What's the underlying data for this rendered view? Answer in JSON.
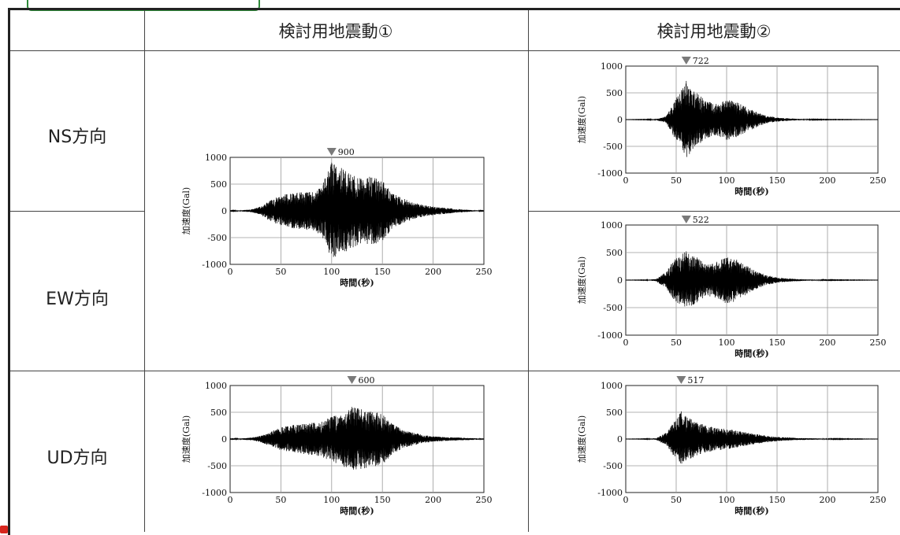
{
  "header": {
    "col1": "検討用地震動①",
    "col2": "検討用地震動②"
  },
  "rows": {
    "ns": "NS方向",
    "ew": "EW方向",
    "ud": "UD方向"
  },
  "colors": {
    "frame": "#222222",
    "trace": "#000000",
    "peak_marker": "#7a7a7a",
    "accent_tab": "#2f8a3a",
    "accent_red": "#d7261e"
  },
  "chart_data": [
    {
      "id": "m1-ns-ew",
      "type": "line",
      "ground_motion": "検討用地震動①",
      "direction": "NS方向 / EW方向",
      "xlabel": "時間(秒)",
      "ylabel": "加速度(Gal)",
      "xlim": [
        0,
        250
      ],
      "ylim": [
        -1000,
        1000
      ],
      "xticks": [
        "0",
        "50",
        "100",
        "150",
        "200",
        "250"
      ],
      "yticks": [
        "1000",
        "500",
        "0",
        "-500",
        "-1000"
      ],
      "grid": true,
      "peak_label": "900",
      "peak_time": 100,
      "peak_value": 900,
      "envelope": [
        [
          0,
          5
        ],
        [
          10,
          10
        ],
        [
          20,
          25
        ],
        [
          30,
          80
        ],
        [
          40,
          200
        ],
        [
          50,
          300
        ],
        [
          60,
          320
        ],
        [
          70,
          350
        ],
        [
          80,
          360
        ],
        [
          90,
          450
        ],
        [
          100,
          900
        ],
        [
          110,
          800
        ],
        [
          120,
          700
        ],
        [
          130,
          600
        ],
        [
          140,
          650
        ],
        [
          150,
          560
        ],
        [
          160,
          320
        ],
        [
          170,
          240
        ],
        [
          180,
          160
        ],
        [
          190,
          110
        ],
        [
          200,
          80
        ],
        [
          210,
          60
        ],
        [
          220,
          40
        ],
        [
          230,
          25
        ],
        [
          240,
          12
        ],
        [
          250,
          5
        ]
      ]
    },
    {
      "id": "m2-ns",
      "type": "line",
      "ground_motion": "検討用地震動②",
      "direction": "NS方向",
      "xlabel": "時間(秒)",
      "ylabel": "加速度(Gal)",
      "xlim": [
        0,
        250
      ],
      "ylim": [
        -1000,
        1000
      ],
      "xticks": [
        "0",
        "50",
        "100",
        "150",
        "200",
        "250"
      ],
      "yticks": [
        "1000",
        "500",
        "0",
        "-500",
        "-1000"
      ],
      "grid": true,
      "peak_label": "722",
      "peak_time": 60,
      "peak_value": 722,
      "envelope": [
        [
          0,
          2
        ],
        [
          20,
          5
        ],
        [
          30,
          10
        ],
        [
          40,
          60
        ],
        [
          50,
          400
        ],
        [
          55,
          550
        ],
        [
          60,
          722
        ],
        [
          65,
          600
        ],
        [
          70,
          500
        ],
        [
          80,
          350
        ],
        [
          90,
          300
        ],
        [
          100,
          380
        ],
        [
          110,
          330
        ],
        [
          120,
          230
        ],
        [
          130,
          140
        ],
        [
          140,
          70
        ],
        [
          150,
          40
        ],
        [
          160,
          25
        ],
        [
          170,
          15
        ],
        [
          180,
          8
        ],
        [
          200,
          5
        ],
        [
          250,
          2
        ]
      ]
    },
    {
      "id": "m2-ew",
      "type": "line",
      "ground_motion": "検討用地震動②",
      "direction": "EW方向",
      "xlabel": "時間(秒)",
      "ylabel": "加速度(Gal)",
      "xlim": [
        0,
        250
      ],
      "ylim": [
        -1000,
        1000
      ],
      "xticks": [
        "0",
        "50",
        "100",
        "150",
        "200",
        "250"
      ],
      "yticks": [
        "1000",
        "500",
        "0",
        "-500",
        "-1000"
      ],
      "grid": true,
      "peak_label": "522",
      "peak_time": 60,
      "peak_value": 522,
      "envelope": [
        [
          0,
          2
        ],
        [
          20,
          5
        ],
        [
          30,
          20
        ],
        [
          40,
          150
        ],
        [
          50,
          420
        ],
        [
          60,
          522
        ],
        [
          70,
          420
        ],
        [
          80,
          280
        ],
        [
          90,
          330
        ],
        [
          100,
          430
        ],
        [
          110,
          380
        ],
        [
          120,
          260
        ],
        [
          130,
          160
        ],
        [
          140,
          90
        ],
        [
          150,
          50
        ],
        [
          160,
          30
        ],
        [
          180,
          12
        ],
        [
          200,
          6
        ],
        [
          250,
          2
        ]
      ]
    },
    {
      "id": "m1-ud",
      "type": "line",
      "ground_motion": "検討用地震動①",
      "direction": "UD方向",
      "xlabel": "時間(秒)",
      "ylabel": "加速度(Gal)",
      "xlim": [
        0,
        250
      ],
      "ylim": [
        -1000,
        1000
      ],
      "xticks": [
        "0",
        "50",
        "100",
        "150",
        "200",
        "250"
      ],
      "yticks": [
        "1000",
        "500",
        "0",
        "-500",
        "-1000"
      ],
      "grid": true,
      "peak_label": "600",
      "peak_time": 120,
      "peak_value": 600,
      "envelope": [
        [
          0,
          5
        ],
        [
          10,
          10
        ],
        [
          20,
          25
        ],
        [
          30,
          60
        ],
        [
          40,
          140
        ],
        [
          50,
          220
        ],
        [
          60,
          260
        ],
        [
          70,
          280
        ],
        [
          80,
          300
        ],
        [
          90,
          330
        ],
        [
          100,
          420
        ],
        [
          110,
          500
        ],
        [
          120,
          600
        ],
        [
          130,
          560
        ],
        [
          140,
          520
        ],
        [
          150,
          480
        ],
        [
          160,
          280
        ],
        [
          170,
          180
        ],
        [
          180,
          120
        ],
        [
          190,
          80
        ],
        [
          200,
          50
        ],
        [
          220,
          30
        ],
        [
          250,
          10
        ]
      ]
    },
    {
      "id": "m2-ud",
      "type": "line",
      "ground_motion": "検討用地震動②",
      "direction": "UD方向",
      "xlabel": "時間(秒)",
      "ylabel": "加速度(Gal)",
      "xlim": [
        0,
        250
      ],
      "ylim": [
        -1000,
        1000
      ],
      "xticks": [
        "0",
        "50",
        "100",
        "150",
        "200",
        "250"
      ],
      "yticks": [
        "1000",
        "500",
        "0",
        "-500",
        "-1000"
      ],
      "grid": true,
      "peak_label": "517",
      "peak_time": 55,
      "peak_value": 517,
      "envelope": [
        [
          0,
          2
        ],
        [
          20,
          5
        ],
        [
          30,
          15
        ],
        [
          40,
          120
        ],
        [
          50,
          380
        ],
        [
          55,
          517
        ],
        [
          60,
          420
        ],
        [
          70,
          320
        ],
        [
          80,
          250
        ],
        [
          90,
          210
        ],
        [
          100,
          190
        ],
        [
          110,
          160
        ],
        [
          120,
          120
        ],
        [
          130,
          90
        ],
        [
          140,
          60
        ],
        [
          150,
          40
        ],
        [
          170,
          20
        ],
        [
          200,
          8
        ],
        [
          250,
          2
        ]
      ]
    }
  ]
}
